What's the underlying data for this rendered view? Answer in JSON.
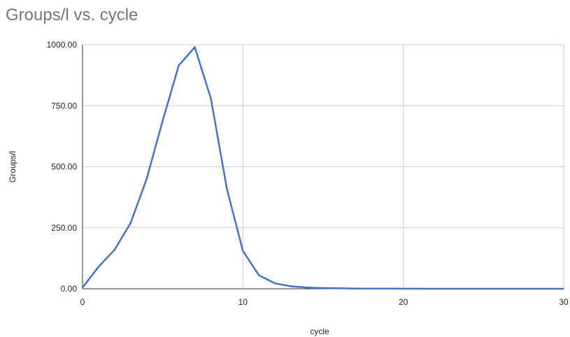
{
  "chart_data": {
    "type": "line",
    "title": "Groups/l vs. cycle",
    "xlabel": "cycle",
    "ylabel": "Groups/l",
    "xlim": [
      0,
      30
    ],
    "ylim": [
      0,
      1000
    ],
    "x_ticks": [
      "0",
      "10",
      "20",
      "30"
    ],
    "y_ticks": [
      "0.00",
      "250.00",
      "500.00",
      "750.00",
      "1000.00"
    ],
    "grid": true,
    "legend": "none",
    "series": [
      {
        "color": "#4472c4",
        "x": [
          0,
          1,
          2,
          3,
          4,
          5,
          6,
          7,
          8,
          9,
          10,
          11,
          12,
          13,
          14,
          15,
          16,
          17,
          18,
          19,
          20,
          21,
          22,
          23,
          24,
          25,
          26,
          27,
          28,
          29,
          30
        ],
        "y": [
          5,
          90,
          160,
          270,
          450,
          690,
          915,
          990,
          780,
          410,
          155,
          55,
          22,
          10,
          5,
          3,
          2,
          1,
          1,
          0.5,
          0.3,
          0.2,
          0.1,
          0.1,
          0.1,
          0,
          0,
          0,
          0,
          0,
          0
        ]
      }
    ]
  }
}
